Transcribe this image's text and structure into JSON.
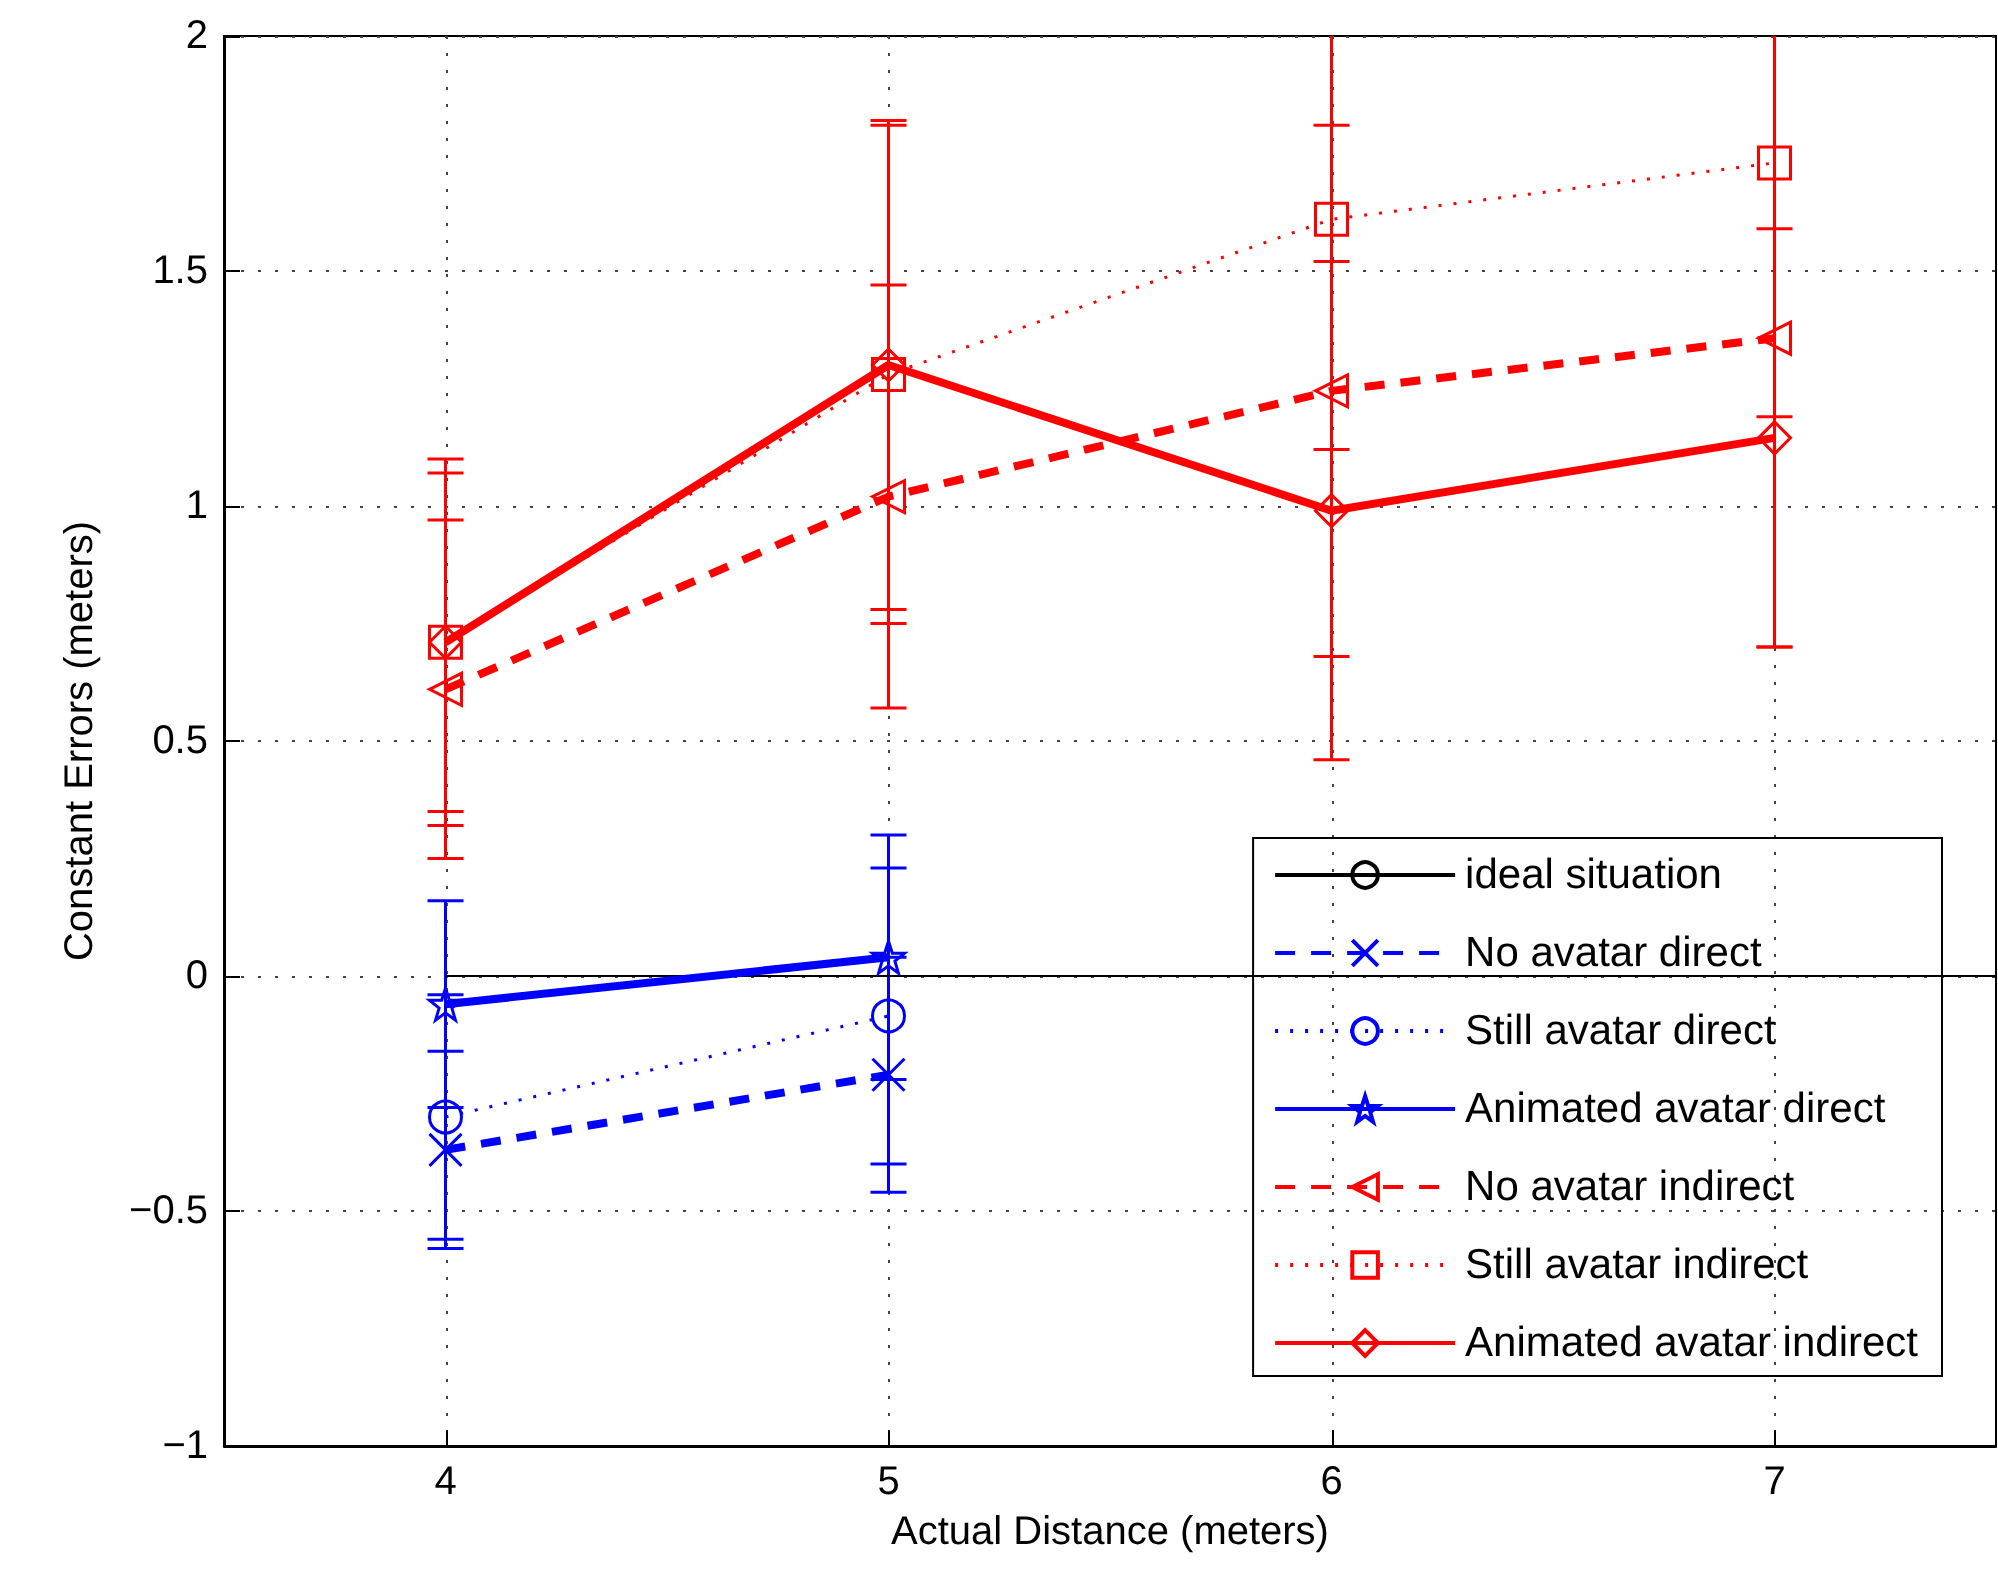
{
  "chart_data": {
    "type": "line",
    "xlabel": "Actual Distance (meters)",
    "ylabel": "Constant Errors (meters)",
    "xlim": [
      3.5,
      7.5
    ],
    "xticks": [
      4,
      5,
      6,
      7
    ],
    "ylim": [
      -1,
      2
    ],
    "yticks": [
      -1,
      -0.5,
      0,
      0.5,
      1,
      1.5,
      2
    ],
    "grid": true,
    "legend": "bottom right",
    "series": [
      {
        "name": "ideal situation",
        "color": "#000000",
        "x": [
          4,
          7.5
        ],
        "values": [
          0,
          0
        ],
        "line_style": "solid",
        "marker": "none"
      },
      {
        "name": "No avatar direct",
        "color": "#0000ff",
        "x": [
          4,
          5
        ],
        "values": [
          -0.37,
          -0.21
        ],
        "errors": [
          0.21,
          0.25
        ],
        "line_style": "dashed",
        "marker": "cross"
      },
      {
        "name": "Still avatar direct",
        "color": "#0000ff",
        "x": [
          4,
          5
        ],
        "values": [
          -0.3,
          -0.085
        ],
        "errors": [
          0.26,
          0.315
        ],
        "line_style": "dotted",
        "marker": "circle"
      },
      {
        "name": "Animated avatar direct",
        "color": "#0000ff",
        "x": [
          4,
          5
        ],
        "values": [
          -0.06,
          0.04
        ],
        "errors": [
          0.22,
          0.26
        ],
        "line_style": "solid",
        "marker": "star"
      },
      {
        "name": "No avatar indirect",
        "color": "#ff0000",
        "x": [
          4,
          5,
          6,
          7
        ],
        "values": [
          0.61,
          1.02,
          1.245,
          1.357
        ],
        "errors": [
          0.36,
          0.45,
          0.565,
          0.657
        ],
        "line_style": "dashed",
        "marker": "triangle"
      },
      {
        "name": "Still avatar indirect",
        "color": "#ff0000",
        "x": [
          4,
          5,
          6,
          7
        ],
        "values": [
          0.71,
          1.28,
          1.61,
          1.73
        ],
        "errors": [
          0.39,
          0.53,
          0.49,
          0.54
        ],
        "line_style": "dotted",
        "marker": "square"
      },
      {
        "name": "Animated avatar indirect",
        "color": "#ff0000",
        "x": [
          4,
          5,
          6,
          7
        ],
        "values": [
          0.71,
          1.3,
          0.99,
          1.145
        ],
        "errors": [
          0.36,
          0.52,
          0.53,
          0.445
        ],
        "line_style": "solid",
        "marker": "diamond"
      }
    ]
  }
}
